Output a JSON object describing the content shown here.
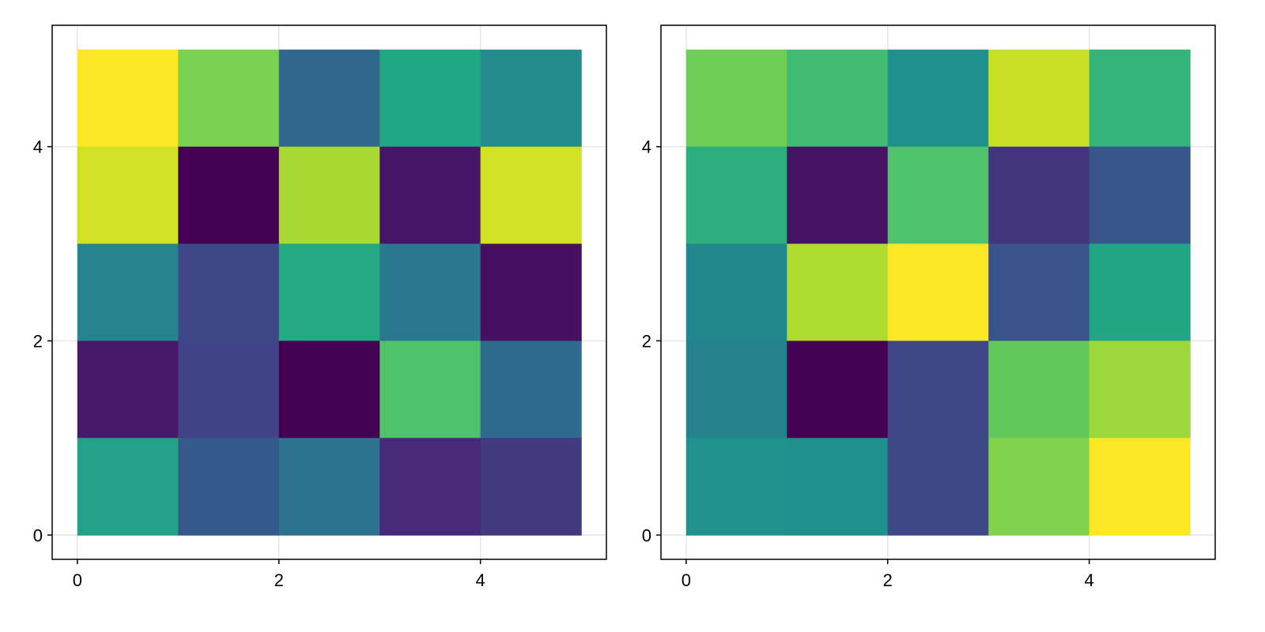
{
  "chart_data": [
    {
      "type": "heatmap",
      "title": "",
      "xlabel": "",
      "ylabel": "",
      "x_edges": [
        0,
        1,
        2,
        3,
        4,
        5
      ],
      "y_edges": [
        0,
        1,
        2,
        3,
        4,
        5
      ],
      "xlim": [
        -0.25,
        5.25
      ],
      "ylim": [
        -0.25,
        5.25
      ],
      "x_ticks": [
        0,
        2,
        4
      ],
      "y_ticks": [
        0,
        2,
        4
      ],
      "grid": true,
      "colormap": "viridis",
      "color_range": [
        0,
        1
      ],
      "rows_top_to_bottom": [
        [
          1.0,
          0.8,
          0.33,
          0.6,
          0.48
        ],
        [
          0.93,
          0.0,
          0.87,
          0.06,
          0.93
        ],
        [
          0.45,
          0.22,
          0.61,
          0.4,
          0.04
        ],
        [
          0.07,
          0.2,
          0.0,
          0.72,
          0.35
        ],
        [
          0.58,
          0.28,
          0.38,
          0.12,
          0.17
        ]
      ]
    },
    {
      "type": "heatmap",
      "title": "",
      "xlabel": "",
      "ylabel": "",
      "x_edges": [
        0,
        1,
        2,
        3,
        4,
        5
      ],
      "y_edges": [
        0,
        1,
        2,
        3,
        4,
        5
      ],
      "xlim": [
        -0.25,
        5.25
      ],
      "ylim": [
        -0.25,
        5.25
      ],
      "x_ticks": [
        0,
        2,
        4
      ],
      "y_ticks": [
        0,
        2,
        4
      ],
      "grid": true,
      "colormap": "viridis",
      "color_range": [
        0,
        1
      ],
      "rows_top_to_bottom": [
        [
          0.78,
          0.69,
          0.5,
          0.92,
          0.65
        ],
        [
          0.63,
          0.05,
          0.72,
          0.16,
          0.27
        ],
        [
          0.46,
          0.88,
          1.0,
          0.26,
          0.59
        ],
        [
          0.44,
          0.0,
          0.22,
          0.76,
          0.85
        ],
        [
          0.51,
          0.5,
          0.22,
          0.81,
          1.0
        ]
      ]
    }
  ]
}
